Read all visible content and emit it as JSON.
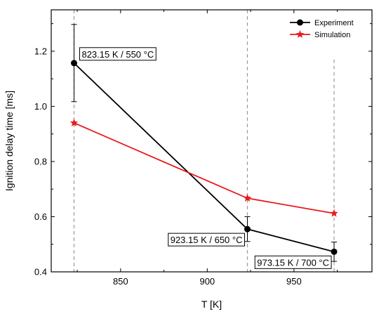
{
  "chart_data": {
    "type": "line",
    "xlabel": "T [K]",
    "ylabel": "Ignition delay time [ms]",
    "xlim": [
      810,
      995
    ],
    "ylim": [
      0.4,
      1.35
    ],
    "xticks": [
      850,
      900,
      950
    ],
    "yticks": [
      0.4,
      0.6,
      0.8,
      1.0,
      1.2
    ],
    "x_tick_labels": [
      "850",
      "900",
      "950"
    ],
    "y_tick_labels": [
      "0.4",
      "0.6",
      "0.8",
      "1.0",
      "1.2"
    ],
    "legend_position": "top-right",
    "series": [
      {
        "name": "Experiment",
        "color": "#000000",
        "marker": "circle",
        "x": [
          823.15,
          923.15,
          973.15
        ],
        "y": [
          1.157,
          0.555,
          0.473
        ],
        "error": [
          0.14,
          0.045,
          0.035
        ]
      },
      {
        "name": "Simulation",
        "color": "#e8191c",
        "marker": "star",
        "x": [
          823.15,
          923.15,
          973.15
        ],
        "y": [
          0.94,
          0.667,
          0.612
        ]
      }
    ],
    "vlines": [
      823.15,
      923.15,
      973.15
    ],
    "vline_tops": [
      1.35,
      1.35,
      1.17
    ],
    "annotations": [
      {
        "text": "823.15 K / 550 °C",
        "x": 823.15,
        "y": 1.157
      },
      {
        "text": "923.15 K / 650 °C",
        "x": 923.15,
        "y": 0.555
      },
      {
        "text": "973.15 K / 700 °C",
        "x": 973.15,
        "y": 0.473
      }
    ]
  }
}
